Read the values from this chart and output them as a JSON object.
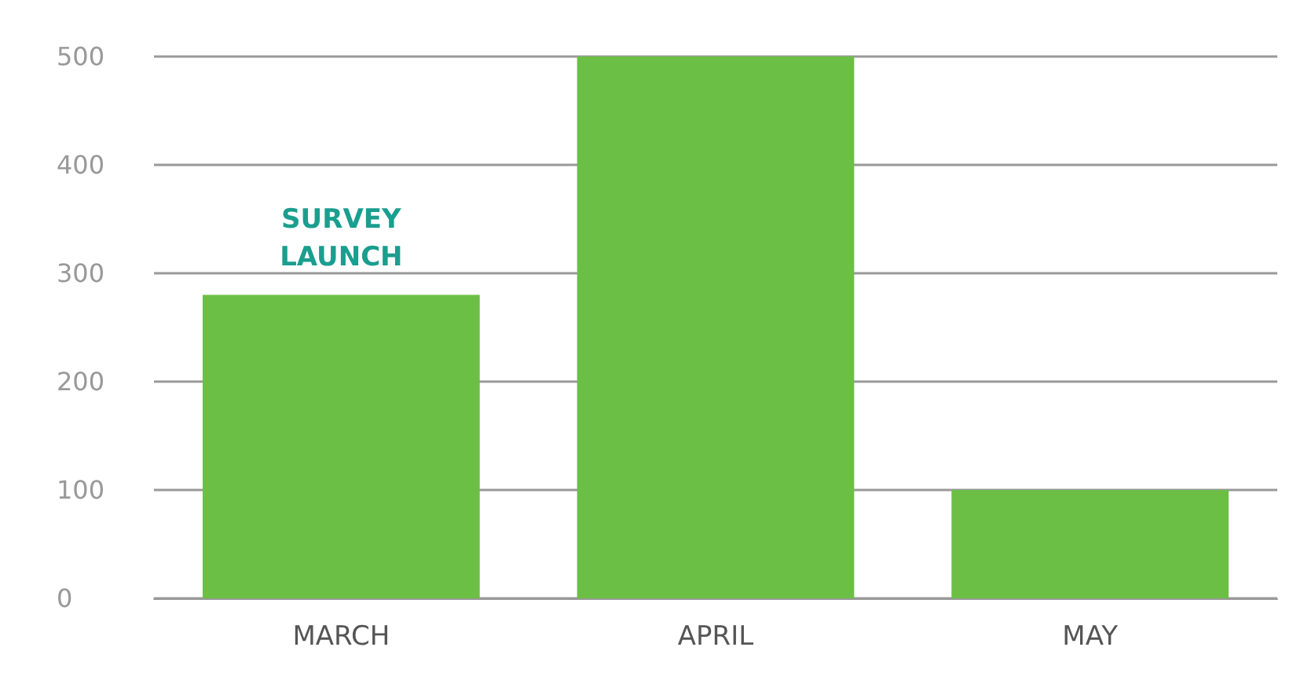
{
  "chart_data": {
    "type": "bar",
    "categories": [
      "MARCH",
      "APRIL",
      "MAY"
    ],
    "values": [
      280,
      500,
      100
    ],
    "color": "#6cbf45",
    "ylim": [
      0,
      500
    ],
    "yticks": [
      0,
      100,
      200,
      300,
      400,
      500
    ],
    "grid": "y",
    "annotations": [
      {
        "text": "SURVEY\nLAUNCH",
        "x": "MARCH",
        "y": 280
      }
    ]
  }
}
